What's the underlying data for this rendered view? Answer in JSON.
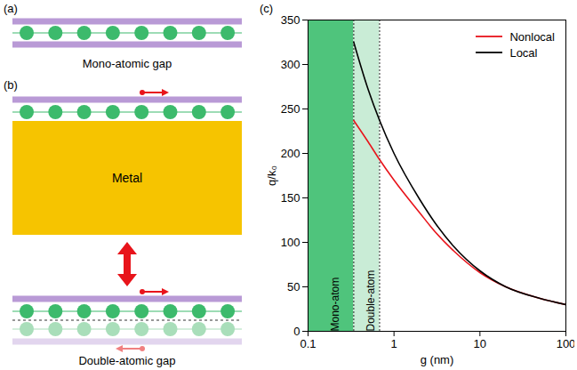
{
  "diagrams": {
    "a": {
      "label": "(a)",
      "caption": "Mono-atomic gap"
    },
    "b": {
      "label": "(b)",
      "metal": "Metal",
      "caption": "Double-atomic gap"
    }
  },
  "chart_data": {
    "type": "line",
    "panel_label": "(c)",
    "x_label": "g (nm)",
    "y_label": "q/k₀",
    "log": "x",
    "xlim": [
      0.1,
      100
    ],
    "xticks": [
      0.1,
      1,
      10,
      100
    ],
    "ylim": [
      0,
      350
    ],
    "yticks": [
      0,
      50,
      100,
      150,
      200,
      250,
      300,
      350
    ],
    "grid": false,
    "legend": "top-right",
    "x": [
      0.34,
      0.5,
      0.68,
      1,
      2,
      3,
      5,
      10,
      20,
      50,
      100
    ],
    "series": [
      {
        "name": "Nonlocal",
        "color": "#e8141b",
        "values": [
          237,
          213,
          193,
          170,
          133,
          112,
          90,
          66,
          50,
          37,
          30
        ]
      },
      {
        "name": "Local",
        "color": "#000000",
        "values": [
          325,
          272,
          237,
          200,
          148,
          122,
          95,
          68,
          50,
          37,
          30
        ]
      }
    ],
    "regions": [
      {
        "label": "Mono-atom",
        "x1": 0.1,
        "x2": 0.34,
        "color": "#4fc47c"
      },
      {
        "label": "Double-atom",
        "x1": 0.34,
        "x2": 0.68,
        "color": "#c9ecd6"
      }
    ]
  }
}
